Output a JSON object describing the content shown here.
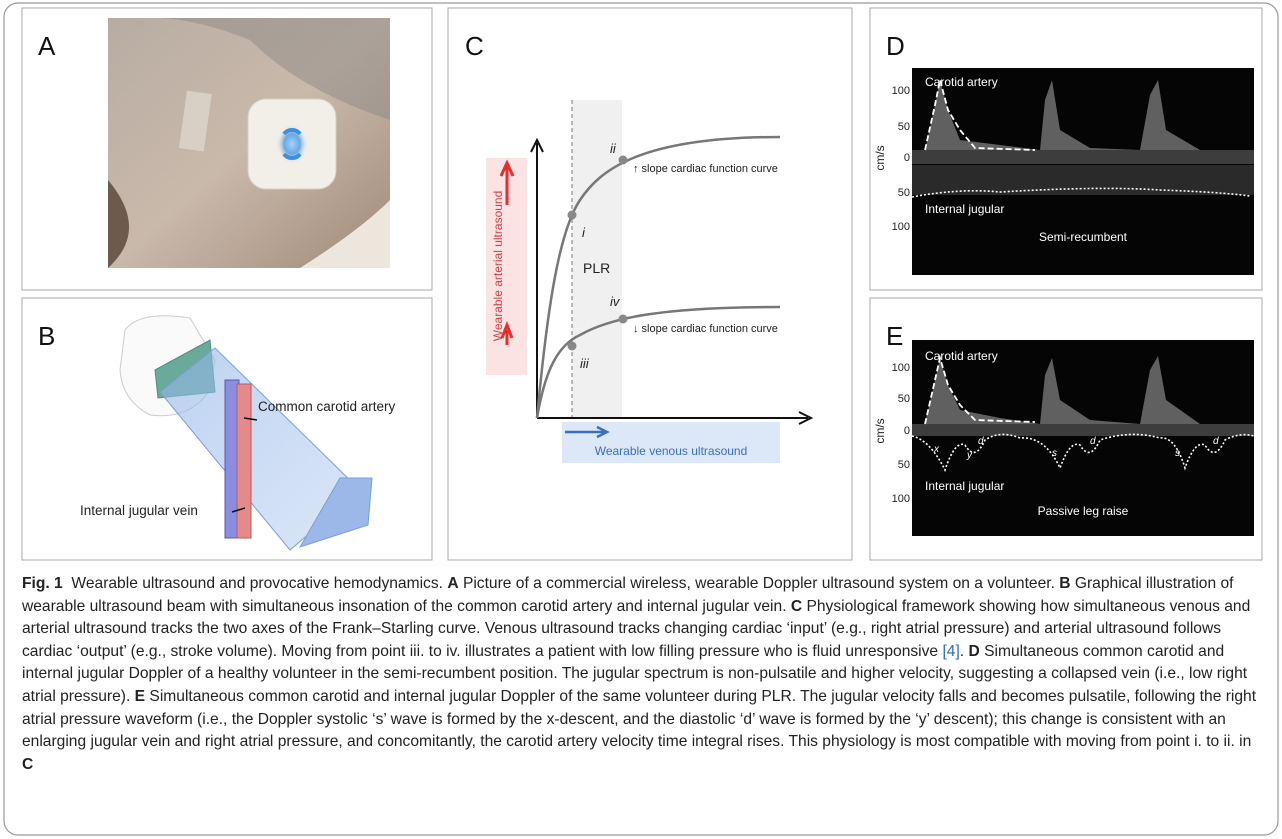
{
  "panels": {
    "A": {
      "letter": "A"
    },
    "B": {
      "letter": "B",
      "artery_label": "Common carotid artery",
      "vein_label": "Internal jugular vein"
    },
    "C": {
      "letter": "C",
      "y_axis_label": "Wearable arterial ultrasound",
      "x_axis_label": "Wearable venous ultrasound",
      "region_label": "PLR",
      "points": [
        "i",
        "ii",
        "iii",
        "iv"
      ],
      "upper_curve_label": "↑ slope cardiac function curve",
      "lower_curve_label": "↓ slope cardiac function curve"
    },
    "D": {
      "letter": "D",
      "top_label": "Carotid artery",
      "bottom_label": "Internal jugular",
      "position_label": "Semi-recumbent",
      "unit": "cm/s",
      "ticks": [
        "100",
        "50",
        "0",
        "50",
        "100"
      ]
    },
    "E": {
      "letter": "E",
      "top_label": "Carotid artery",
      "bottom_label": "Internal jugular",
      "position_label": "Passive leg raise",
      "unit": "cm/s",
      "ticks": [
        "100",
        "50",
        "0",
        "50",
        "100"
      ],
      "wave_labels": [
        "x",
        "y",
        "d",
        "s",
        "d",
        "s",
        "d"
      ]
    }
  },
  "caption": {
    "label": "Fig. 1",
    "title": "Wearable ultrasound and provocative hemodynamics.",
    "items": [
      {
        "letter": "A",
        "text": "Picture of a commercial wireless, wearable Doppler ultrasound system on a volunteer."
      },
      {
        "letter": "B",
        "text": "Graphical illustration of wearable ultrasound beam with simultaneous insonation of the common carotid artery and internal jugular vein."
      },
      {
        "letter": "C",
        "text": "Physiological framework showing how simultaneous venous and arterial ultrasound tracks the two axes of the Frank–Starling curve. Venous ultrasound tracks changing cardiac ‘input’ (e.g., right atrial pressure) and arterial ultrasound follows cardiac ‘output’ (e.g., stroke volume). Moving from point iii. to iv. illustrates a patient with low filling pressure who is fluid unresponsive",
        "ref": "[4]",
        "after": "."
      },
      {
        "letter": "D",
        "text": "Simultaneous common carotid and internal jugular Doppler of a healthy volunteer in the semi-recumbent position. The jugular spectrum is non-pulsatile and higher velocity, suggesting a collapsed vein (i.e., low right atrial pressure)."
      },
      {
        "letter": "E",
        "text": "Simultaneous common carotid and internal jugular Doppler of the same volunteer during PLR. The jugular velocity falls and becomes pulsatile, following the right atrial pressure waveform (i.e., the Doppler systolic ‘s’ wave is formed by the x-descent, and the diastolic ‘d’ wave is formed by the ‘y’ descent); this change is consistent with an enlarging jugular vein and right atrial pressure, and concomitantly, the carotid artery velocity time integral rises. This physiology is most compatible with moving from point i. to ii. in",
        "panel_ref": "C"
      }
    ]
  }
}
